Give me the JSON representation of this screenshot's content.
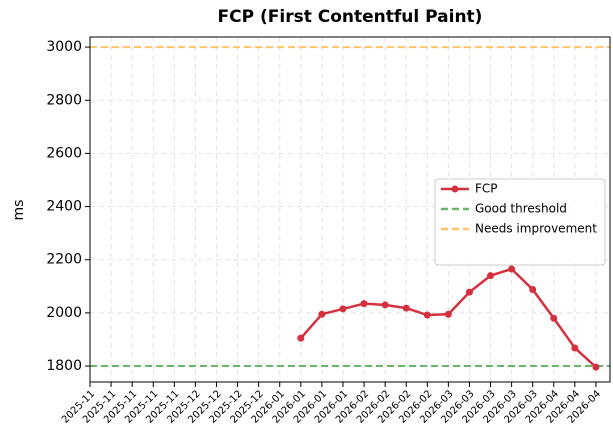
{
  "chart_data": {
    "type": "line",
    "title": "FCP (First Contentful Paint)",
    "y_label": "ms",
    "categories": [
      "2025-11",
      "2025-11",
      "2025-11",
      "2025-11",
      "2025-11",
      "2025-12",
      "2025-12",
      "2025-12",
      "2025-12",
      "2026-01",
      "2026-01",
      "2026-01",
      "2026-01",
      "2026-02",
      "2026-02",
      "2026-02",
      "2026-02",
      "2026-03",
      "2026-03",
      "2026-03",
      "2026-03",
      "2026-03",
      "2026-04",
      "2026-04",
      "2026-04"
    ],
    "series": [
      {
        "name": "FCP",
        "color": "#d5303f",
        "values": [
          null,
          null,
          null,
          null,
          null,
          null,
          null,
          null,
          null,
          null,
          1905,
          1995,
          2015,
          2035,
          2030,
          2018,
          1992,
          1995,
          2078,
          2140,
          2165,
          2088,
          1980,
          1868,
          1796
        ]
      }
    ],
    "thresholds": [
      {
        "name": "Good threshold",
        "value": 1800,
        "color": "#6ab56a"
      },
      {
        "name": "Needs improvement",
        "value": 3000,
        "color": "#ffc466"
      }
    ],
    "ylim": [
      1740,
      3038
    ],
    "yticks": [
      1800,
      2000,
      2200,
      2400,
      2600,
      2800,
      3000
    ],
    "grid": true,
    "legend": "center right"
  }
}
